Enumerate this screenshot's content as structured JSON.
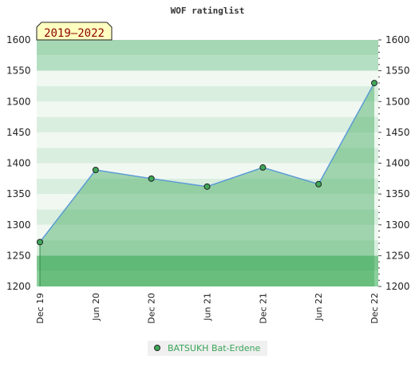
{
  "chart_data": {
    "type": "line",
    "title": "WOF ratinglist",
    "badge": "2019–2022",
    "x": [
      "Dec 19",
      "Jun 20",
      "Dec 20",
      "Jun 21",
      "Dec 21",
      "Jun 22",
      "Dec 22"
    ],
    "series": [
      {
        "name": "BATSUKH Bat-Erdene",
        "values": [
          1272,
          1389,
          1375,
          1362,
          1393,
          1366,
          1530
        ]
      }
    ],
    "ylim": [
      1200,
      1600
    ],
    "yticks": [
      1200,
      1250,
      1300,
      1350,
      1400,
      1450,
      1500,
      1550,
      1600
    ],
    "grid": true,
    "legend_position": "bottom",
    "colors": {
      "line": "#5b9bd5",
      "area": "#3fa85a",
      "marker": "#3fa85a",
      "band_dark": "#7fc690",
      "band_light": "#e8f4ea",
      "badge_bg": "#ffffc0",
      "badge_text": "#8b0000",
      "legend_text": "#3aa457"
    }
  }
}
